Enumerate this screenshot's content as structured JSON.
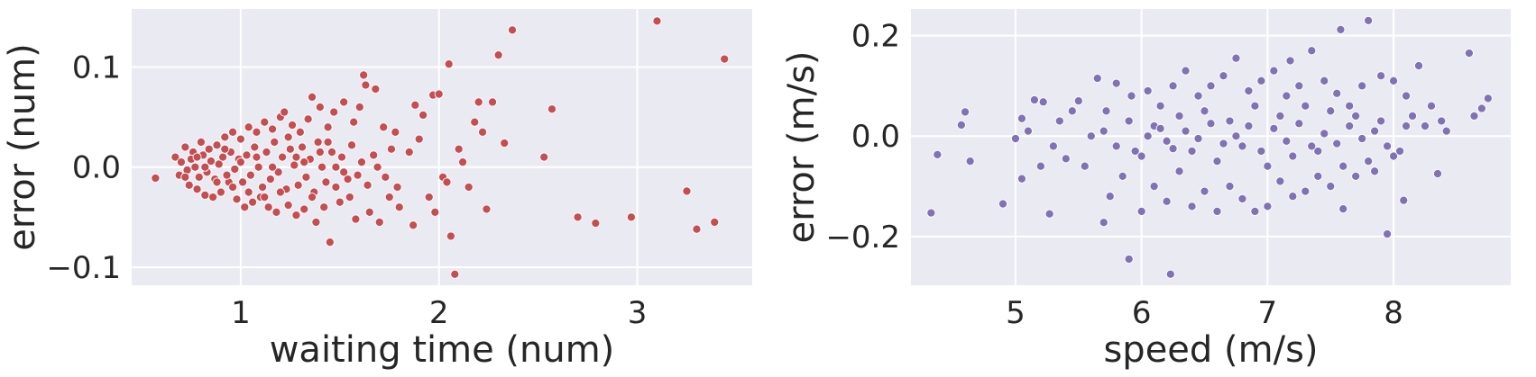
{
  "chart_data": [
    {
      "type": "scatter",
      "xlabel": "waiting time (num)",
      "ylabel": "error (num)",
      "xlim": [
        0.45,
        3.58
      ],
      "ylim": [
        -0.118,
        0.158
      ],
      "xticks": [
        1,
        2,
        3
      ],
      "yticks": [
        -0.1,
        0.0,
        0.1
      ],
      "xtick_labels": [
        "1",
        "2",
        "3"
      ],
      "ytick_labels": [
        "−0.1",
        "0.0",
        "0.1"
      ],
      "grid": true,
      "legend": "none",
      "color": "#C44E52",
      "points": [
        [
          0.57,
          -0.011
        ],
        [
          0.67,
          0.01
        ],
        [
          0.69,
          -0.008
        ],
        [
          0.72,
          0.02
        ],
        [
          0.74,
          -0.018
        ],
        [
          0.76,
          0.015
        ],
        [
          0.78,
          -0.022
        ],
        [
          0.8,
          0.025
        ],
        [
          0.82,
          -0.028
        ],
        [
          0.84,
          0.018
        ],
        [
          0.86,
          -0.03
        ],
        [
          0.88,
          0.022
        ],
        [
          0.9,
          -0.025
        ],
        [
          0.92,
          0.03
        ],
        [
          0.94,
          -0.015
        ],
        [
          0.96,
          0.035
        ],
        [
          0.98,
          -0.032
        ],
        [
          1.0,
          0.028
        ],
        [
          1.02,
          -0.04
        ],
        [
          1.04,
          0.04
        ],
        [
          1.06,
          -0.035
        ],
        [
          1.08,
          0.035
        ],
        [
          1.1,
          -0.03
        ],
        [
          1.12,
          0.045
        ],
        [
          1.14,
          -0.04
        ],
        [
          1.16,
          0.038
        ],
        [
          1.18,
          -0.045
        ],
        [
          1.2,
          0.05
        ],
        [
          1.22,
          0.055
        ],
        [
          1.24,
          -0.038
        ],
        [
          1.26,
          0.042
        ],
        [
          1.28,
          -0.048
        ],
        [
          1.3,
          0.035
        ],
        [
          1.32,
          -0.042
        ],
        [
          1.34,
          0.048
        ],
        [
          1.36,
          0.07
        ],
        [
          1.38,
          -0.055
        ],
        [
          1.4,
          0.06
        ],
        [
          1.42,
          -0.04
        ],
        [
          1.44,
          0.04
        ],
        [
          1.45,
          -0.075
        ],
        [
          1.47,
          0.055
        ],
        [
          1.5,
          -0.035
        ],
        [
          1.52,
          0.065
        ],
        [
          1.55,
          -0.03
        ],
        [
          1.57,
          0.045
        ],
        [
          1.58,
          -0.052
        ],
        [
          1.6,
          0.06
        ],
        [
          1.62,
          0.092
        ],
        [
          1.63,
          0.082
        ],
        [
          1.65,
          -0.045
        ],
        [
          1.68,
          0.078
        ],
        [
          1.7,
          -0.055
        ],
        [
          1.72,
          0.04
        ],
        [
          1.75,
          -0.03
        ],
        [
          1.78,
          0.035
        ],
        [
          1.8,
          -0.04
        ],
        [
          1.85,
          0.015
        ],
        [
          1.87,
          -0.058
        ],
        [
          1.88,
          0.062
        ],
        [
          1.9,
          0.028
        ],
        [
          1.92,
          0.052
        ],
        [
          1.95,
          -0.03
        ],
        [
          1.97,
          0.072
        ],
        [
          1.98,
          -0.045
        ],
        [
          2.0,
          0.073
        ],
        [
          2.02,
          -0.01
        ],
        [
          2.04,
          -0.015
        ],
        [
          2.05,
          0.103
        ],
        [
          2.06,
          -0.069
        ],
        [
          2.08,
          -0.107
        ],
        [
          2.1,
          0.018
        ],
        [
          2.12,
          0.005
        ],
        [
          2.15,
          -0.02
        ],
        [
          2.18,
          0.045
        ],
        [
          2.2,
          0.065
        ],
        [
          2.22,
          0.035
        ],
        [
          2.24,
          -0.042
        ],
        [
          2.27,
          0.065
        ],
        [
          2.3,
          0.112
        ],
        [
          2.33,
          0.024
        ],
        [
          2.37,
          0.137
        ],
        [
          2.53,
          0.01
        ],
        [
          2.57,
          0.058
        ],
        [
          2.7,
          -0.05
        ],
        [
          2.79,
          -0.056
        ],
        [
          2.97,
          -0.05
        ],
        [
          3.1,
          0.146
        ],
        [
          3.25,
          -0.024
        ],
        [
          3.3,
          -0.062
        ],
        [
          3.39,
          -0.055
        ],
        [
          3.44,
          0.108
        ],
        [
          0.7,
          0.005
        ],
        [
          0.73,
          -0.003
        ],
        [
          0.75,
          0.008
        ],
        [
          0.77,
          0.0
        ],
        [
          0.79,
          -0.01
        ],
        [
          0.81,
          0.012
        ],
        [
          0.83,
          -0.005
        ],
        [
          0.85,
          0.006
        ],
        [
          0.87,
          -0.012
        ],
        [
          0.89,
          0.003
        ],
        [
          0.91,
          0.01
        ],
        [
          0.93,
          -0.008
        ],
        [
          0.95,
          0.015
        ],
        [
          0.97,
          -0.002
        ],
        [
          0.99,
          0.008
        ],
        [
          1.01,
          -0.015
        ],
        [
          1.03,
          0.012
        ],
        [
          1.05,
          -0.008
        ],
        [
          1.07,
          0.02
        ],
        [
          1.09,
          0.0
        ],
        [
          1.11,
          -0.02
        ],
        [
          1.13,
          0.015
        ],
        [
          1.15,
          -0.012
        ],
        [
          1.17,
          0.025
        ],
        [
          1.19,
          -0.005
        ],
        [
          1.21,
          0.01
        ],
        [
          1.23,
          -0.022
        ],
        [
          1.25,
          0.018
        ],
        [
          1.27,
          0.002
        ],
        [
          1.29,
          -0.018
        ],
        [
          1.31,
          0.02
        ],
        [
          1.33,
          -0.01
        ],
        [
          1.35,
          0.008
        ],
        [
          1.37,
          -0.025
        ],
        [
          1.39,
          0.025
        ],
        [
          1.41,
          0.0
        ],
        [
          1.43,
          -0.015
        ],
        [
          1.46,
          0.015
        ],
        [
          1.48,
          -0.02
        ],
        [
          1.51,
          0.01
        ],
        [
          1.54,
          -0.012
        ],
        [
          1.56,
          0.022
        ],
        [
          1.59,
          -0.008
        ],
        [
          1.61,
          0.005
        ],
        [
          1.64,
          -0.018
        ],
        [
          1.67,
          0.012
        ],
        [
          1.69,
          0.0
        ],
        [
          1.73,
          -0.01
        ],
        [
          1.76,
          0.018
        ],
        [
          1.79,
          -0.02
        ],
        [
          0.72,
          -0.01
        ],
        [
          0.78,
          0.01
        ],
        [
          0.82,
          0.0
        ],
        [
          0.88,
          -0.015
        ],
        [
          0.92,
          0.018
        ],
        [
          0.96,
          -0.02
        ],
        [
          1.0,
          0.005
        ],
        [
          1.04,
          -0.025
        ],
        [
          1.08,
          0.01
        ],
        [
          1.12,
          -0.03
        ],
        [
          1.16,
          0.0
        ],
        [
          1.2,
          -0.025
        ],
        [
          1.24,
          0.03
        ],
        [
          1.28,
          0.01
        ],
        [
          1.32,
          0.005
        ],
        [
          1.36,
          -0.03
        ],
        [
          1.4,
          0.015
        ],
        [
          1.44,
          0.025
        ],
        [
          1.48,
          0.0
        ],
        [
          1.52,
          -0.005
        ]
      ]
    },
    {
      "type": "scatter",
      "xlabel": "speed (m/s)",
      "ylabel": "error (m/s)",
      "xlim": [
        4.17,
        8.93
      ],
      "ylim": [
        -0.297,
        0.253
      ],
      "xticks": [
        5,
        6,
        7,
        8
      ],
      "yticks": [
        -0.2,
        0.0,
        0.2
      ],
      "xtick_labels": [
        "5",
        "6",
        "7",
        "8"
      ],
      "ytick_labels": [
        "−0.2",
        "0.0",
        "0.2"
      ],
      "grid": true,
      "legend": "none",
      "color": "#8172B3",
      "points": [
        [
          4.33,
          -0.153
        ],
        [
          4.38,
          -0.037
        ],
        [
          4.57,
          0.022
        ],
        [
          4.6,
          0.048
        ],
        [
          4.64,
          -0.05
        ],
        [
          4.9,
          -0.135
        ],
        [
          5.0,
          -0.005
        ],
        [
          5.05,
          0.035
        ],
        [
          5.05,
          -0.085
        ],
        [
          5.1,
          0.01
        ],
        [
          5.15,
          0.072
        ],
        [
          5.2,
          -0.06
        ],
        [
          5.22,
          0.068
        ],
        [
          5.27,
          -0.155
        ],
        [
          5.3,
          -0.02
        ],
        [
          5.35,
          0.03
        ],
        [
          5.4,
          -0.045
        ],
        [
          5.45,
          0.05
        ],
        [
          5.5,
          0.07
        ],
        [
          5.55,
          -0.06
        ],
        [
          5.6,
          0.0
        ],
        [
          5.65,
          0.115
        ],
        [
          5.7,
          -0.172
        ],
        [
          5.72,
          0.05
        ],
        [
          5.75,
          -0.12
        ],
        [
          5.8,
          0.105
        ],
        [
          5.85,
          -0.08
        ],
        [
          5.9,
          -0.245
        ],
        [
          5.92,
          0.08
        ],
        [
          5.95,
          -0.03
        ],
        [
          6.0,
          -0.15
        ],
        [
          6.05,
          0.09
        ],
        [
          6.1,
          -0.1
        ],
        [
          6.15,
          0.06
        ],
        [
          6.2,
          -0.13
        ],
        [
          6.23,
          -0.275
        ],
        [
          6.25,
          0.1
        ],
        [
          6.3,
          -0.07
        ],
        [
          6.35,
          0.13
        ],
        [
          6.4,
          -0.14
        ],
        [
          6.45,
          0.08
        ],
        [
          6.5,
          -0.11
        ],
        [
          6.55,
          0.1
        ],
        [
          6.6,
          -0.15
        ],
        [
          6.65,
          0.12
        ],
        [
          6.7,
          -0.1
        ],
        [
          6.75,
          0.155
        ],
        [
          6.8,
          -0.125
        ],
        [
          6.85,
          0.09
        ],
        [
          6.9,
          -0.15
        ],
        [
          6.95,
          0.11
        ],
        [
          7.0,
          -0.14
        ],
        [
          7.05,
          0.13
        ],
        [
          7.1,
          -0.09
        ],
        [
          7.15,
          0.08
        ],
        [
          7.18,
          0.15
        ],
        [
          7.2,
          -0.12
        ],
        [
          7.25,
          0.1
        ],
        [
          7.3,
          -0.11
        ],
        [
          7.35,
          0.17
        ],
        [
          7.4,
          -0.08
        ],
        [
          7.45,
          0.11
        ],
        [
          7.5,
          -0.1
        ],
        [
          7.55,
          0.085
        ],
        [
          7.58,
          0.212
        ],
        [
          7.6,
          -0.145
        ],
        [
          7.65,
          0.06
        ],
        [
          7.7,
          -0.08
        ],
        [
          7.75,
          0.1
        ],
        [
          7.8,
          0.23
        ],
        [
          7.85,
          -0.07
        ],
        [
          7.9,
          0.12
        ],
        [
          7.95,
          -0.195
        ],
        [
          8.0,
          0.11
        ],
        [
          8.05,
          -0.03
        ],
        [
          8.08,
          -0.128
        ],
        [
          8.1,
          0.08
        ],
        [
          8.15,
          0.04
        ],
        [
          8.2,
          0.14
        ],
        [
          8.25,
          0.02
        ],
        [
          8.3,
          0.06
        ],
        [
          8.35,
          -0.075
        ],
        [
          8.38,
          0.03
        ],
        [
          8.42,
          0.01
        ],
        [
          8.6,
          0.165
        ],
        [
          8.64,
          0.04
        ],
        [
          8.7,
          0.055
        ],
        [
          8.75,
          0.075
        ],
        [
          5.7,
          0.01
        ],
        [
          5.8,
          -0.02
        ],
        [
          5.9,
          0.03
        ],
        [
          6.0,
          -0.04
        ],
        [
          6.1,
          0.02
        ],
        [
          6.2,
          -0.01
        ],
        [
          6.3,
          0.04
        ],
        [
          6.4,
          -0.03
        ],
        [
          6.5,
          0.05
        ],
        [
          6.6,
          -0.05
        ],
        [
          6.7,
          0.03
        ],
        [
          6.8,
          -0.02
        ],
        [
          6.9,
          0.06
        ],
        [
          7.0,
          -0.06
        ],
        [
          7.1,
          0.04
        ],
        [
          7.2,
          -0.04
        ],
        [
          7.3,
          0.06
        ],
        [
          7.4,
          -0.03
        ],
        [
          7.5,
          0.05
        ],
        [
          7.6,
          -0.06
        ],
        [
          7.7,
          0.04
        ],
        [
          7.8,
          -0.05
        ],
        [
          7.9,
          0.03
        ],
        [
          8.0,
          -0.04
        ],
        [
          8.1,
          0.02
        ],
        [
          6.05,
          0.0
        ],
        [
          6.15,
          0.015
        ],
        [
          6.25,
          -0.025
        ],
        [
          6.35,
          0.01
        ],
        [
          6.45,
          -0.005
        ],
        [
          6.55,
          0.025
        ],
        [
          6.65,
          -0.015
        ],
        [
          6.75,
          0.0
        ],
        [
          6.85,
          0.02
        ],
        [
          6.95,
          -0.03
        ],
        [
          7.05,
          0.015
        ],
        [
          7.15,
          -0.01
        ],
        [
          7.25,
          0.025
        ],
        [
          7.35,
          -0.02
        ],
        [
          7.45,
          0.005
        ],
        [
          7.55,
          -0.015
        ],
        [
          7.65,
          0.02
        ],
        [
          7.75,
          -0.005
        ],
        [
          7.85,
          0.01
        ],
        [
          7.95,
          -0.02
        ]
      ]
    }
  ]
}
